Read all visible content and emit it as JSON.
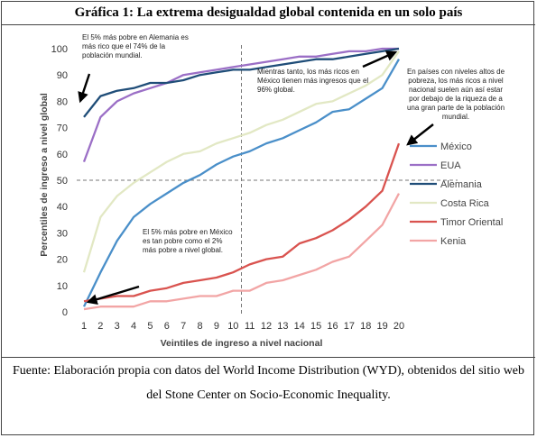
{
  "page": {
    "title": "Gráfica 1: La extrema desigualdad global contenida en un solo país",
    "source_note": "Fuente: Elaboración propia con datos del World Income Distribution (WYD), obtenidos del sitio web del Stone Center on Socio-Economic Inequality."
  },
  "chart_data": {
    "type": "line",
    "title": "",
    "xlabel": "Veintiles de ingreso a nivel nacional",
    "ylabel": "Percentiles de ingreso a nivel global",
    "x": [
      1,
      2,
      3,
      4,
      5,
      6,
      7,
      8,
      9,
      10,
      11,
      12,
      13,
      14,
      15,
      16,
      17,
      18,
      19,
      20
    ],
    "xlim": [
      1,
      20
    ],
    "ylim": [
      0,
      100
    ],
    "yticks": [
      0,
      10,
      20,
      30,
      40,
      50,
      60,
      70,
      80,
      90,
      100
    ],
    "reference_lines": {
      "horizontal_y": 50,
      "vertical_x": 10.5
    },
    "legend_position": "right",
    "series": [
      {
        "name": "México",
        "color": "#4a8fc9",
        "values": [
          2,
          15,
          27,
          36,
          41,
          45,
          49,
          52,
          56,
          59,
          61,
          64,
          66,
          69,
          72,
          76,
          77,
          81,
          85,
          96
        ]
      },
      {
        "name": "EUA",
        "color": "#9b6fc6",
        "values": [
          57,
          74,
          80,
          83,
          85,
          87,
          90,
          91,
          92,
          93,
          94,
          95,
          96,
          97,
          97,
          98,
          99,
          99,
          100,
          100
        ]
      },
      {
        "name": "Alemania",
        "color": "#1f4d78",
        "values": [
          74,
          82,
          84,
          85,
          87,
          87,
          88,
          90,
          91,
          92,
          92,
          93,
          94,
          95,
          96,
          96,
          97,
          98,
          99,
          100
        ]
      },
      {
        "name": "Costa Rica",
        "color": "#e2e8c4",
        "values": [
          15,
          36,
          44,
          49,
          53,
          57,
          60,
          61,
          64,
          66,
          68,
          71,
          73,
          76,
          79,
          80,
          83,
          86,
          90,
          99
        ]
      },
      {
        "name": "Timor Oriental",
        "color": "#d9534f",
        "values": [
          4,
          5,
          6,
          6,
          8,
          9,
          11,
          12,
          13,
          15,
          18,
          20,
          21,
          26,
          28,
          31,
          35,
          40,
          46,
          64
        ]
      },
      {
        "name": "Kenia",
        "color": "#f2a5a5",
        "values": [
          1,
          2,
          2,
          2,
          4,
          4,
          5,
          6,
          6,
          8,
          8,
          11,
          12,
          14,
          16,
          19,
          21,
          27,
          33,
          45
        ]
      }
    ],
    "annotations": [
      {
        "text": "El 5% más pobre en Alemania es más rico que el 74% de la población mundial."
      },
      {
        "text": "Mientras tanto, los más ricos en México tienen más ingresos que el 96% global."
      },
      {
        "text": "En países con niveles altos de pobreza, los más ricos a nivel nacional suelen aún así estar por debajo de la riqueza de a una gran parte de la población mundial."
      },
      {
        "text": "El 5% más pobre en México es tan pobre como el 2% más pobre a nivel global."
      }
    ]
  }
}
